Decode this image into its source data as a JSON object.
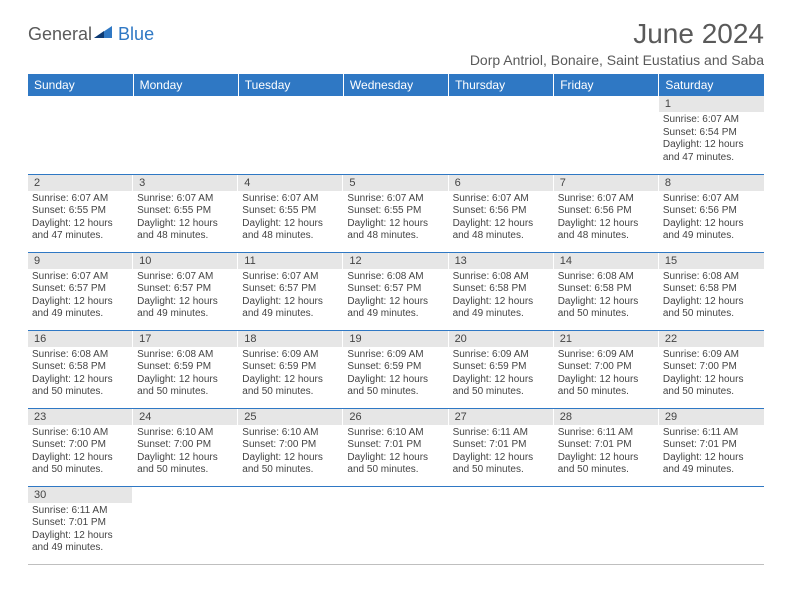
{
  "logo": {
    "part1": "General",
    "part2": "Blue"
  },
  "title": "June 2024",
  "location": "Dorp Antriol, Bonaire, Saint Eustatius and Saba",
  "colors": {
    "header_bg": "#2f78c4",
    "header_text": "#ffffff",
    "daynum_bg": "#e6e6e6",
    "text": "#444444",
    "rule": "#2f78c4",
    "page_bg": "#ffffff"
  },
  "typography": {
    "title_fontsize": 28,
    "location_fontsize": 14,
    "weekday_fontsize": 12,
    "daynum_fontsize": 11,
    "body_fontsize": 10
  },
  "weekdays": [
    "Sunday",
    "Monday",
    "Tuesday",
    "Wednesday",
    "Thursday",
    "Friday",
    "Saturday"
  ],
  "layout": {
    "first_weekday_index": 6,
    "rows": 6,
    "cols": 7
  },
  "days": {
    "1": {
      "sunrise": "6:07 AM",
      "sunset": "6:54 PM",
      "daylight": "12 hours and 47 minutes."
    },
    "2": {
      "sunrise": "6:07 AM",
      "sunset": "6:55 PM",
      "daylight": "12 hours and 47 minutes."
    },
    "3": {
      "sunrise": "6:07 AM",
      "sunset": "6:55 PM",
      "daylight": "12 hours and 48 minutes."
    },
    "4": {
      "sunrise": "6:07 AM",
      "sunset": "6:55 PM",
      "daylight": "12 hours and 48 minutes."
    },
    "5": {
      "sunrise": "6:07 AM",
      "sunset": "6:55 PM",
      "daylight": "12 hours and 48 minutes."
    },
    "6": {
      "sunrise": "6:07 AM",
      "sunset": "6:56 PM",
      "daylight": "12 hours and 48 minutes."
    },
    "7": {
      "sunrise": "6:07 AM",
      "sunset": "6:56 PM",
      "daylight": "12 hours and 48 minutes."
    },
    "8": {
      "sunrise": "6:07 AM",
      "sunset": "6:56 PM",
      "daylight": "12 hours and 49 minutes."
    },
    "9": {
      "sunrise": "6:07 AM",
      "sunset": "6:57 PM",
      "daylight": "12 hours and 49 minutes."
    },
    "10": {
      "sunrise": "6:07 AM",
      "sunset": "6:57 PM",
      "daylight": "12 hours and 49 minutes."
    },
    "11": {
      "sunrise": "6:07 AM",
      "sunset": "6:57 PM",
      "daylight": "12 hours and 49 minutes."
    },
    "12": {
      "sunrise": "6:08 AM",
      "sunset": "6:57 PM",
      "daylight": "12 hours and 49 minutes."
    },
    "13": {
      "sunrise": "6:08 AM",
      "sunset": "6:58 PM",
      "daylight": "12 hours and 49 minutes."
    },
    "14": {
      "sunrise": "6:08 AM",
      "sunset": "6:58 PM",
      "daylight": "12 hours and 50 minutes."
    },
    "15": {
      "sunrise": "6:08 AM",
      "sunset": "6:58 PM",
      "daylight": "12 hours and 50 minutes."
    },
    "16": {
      "sunrise": "6:08 AM",
      "sunset": "6:58 PM",
      "daylight": "12 hours and 50 minutes."
    },
    "17": {
      "sunrise": "6:08 AM",
      "sunset": "6:59 PM",
      "daylight": "12 hours and 50 minutes."
    },
    "18": {
      "sunrise": "6:09 AM",
      "sunset": "6:59 PM",
      "daylight": "12 hours and 50 minutes."
    },
    "19": {
      "sunrise": "6:09 AM",
      "sunset": "6:59 PM",
      "daylight": "12 hours and 50 minutes."
    },
    "20": {
      "sunrise": "6:09 AM",
      "sunset": "6:59 PM",
      "daylight": "12 hours and 50 minutes."
    },
    "21": {
      "sunrise": "6:09 AM",
      "sunset": "7:00 PM",
      "daylight": "12 hours and 50 minutes."
    },
    "22": {
      "sunrise": "6:09 AM",
      "sunset": "7:00 PM",
      "daylight": "12 hours and 50 minutes."
    },
    "23": {
      "sunrise": "6:10 AM",
      "sunset": "7:00 PM",
      "daylight": "12 hours and 50 minutes."
    },
    "24": {
      "sunrise": "6:10 AM",
      "sunset": "7:00 PM",
      "daylight": "12 hours and 50 minutes."
    },
    "25": {
      "sunrise": "6:10 AM",
      "sunset": "7:00 PM",
      "daylight": "12 hours and 50 minutes."
    },
    "26": {
      "sunrise": "6:10 AM",
      "sunset": "7:01 PM",
      "daylight": "12 hours and 50 minutes."
    },
    "27": {
      "sunrise": "6:11 AM",
      "sunset": "7:01 PM",
      "daylight": "12 hours and 50 minutes."
    },
    "28": {
      "sunrise": "6:11 AM",
      "sunset": "7:01 PM",
      "daylight": "12 hours and 50 minutes."
    },
    "29": {
      "sunrise": "6:11 AM",
      "sunset": "7:01 PM",
      "daylight": "12 hours and 49 minutes."
    },
    "30": {
      "sunrise": "6:11 AM",
      "sunset": "7:01 PM",
      "daylight": "12 hours and 49 minutes."
    }
  },
  "labels": {
    "sunrise": "Sunrise:",
    "sunset": "Sunset:",
    "daylight": "Daylight:"
  }
}
